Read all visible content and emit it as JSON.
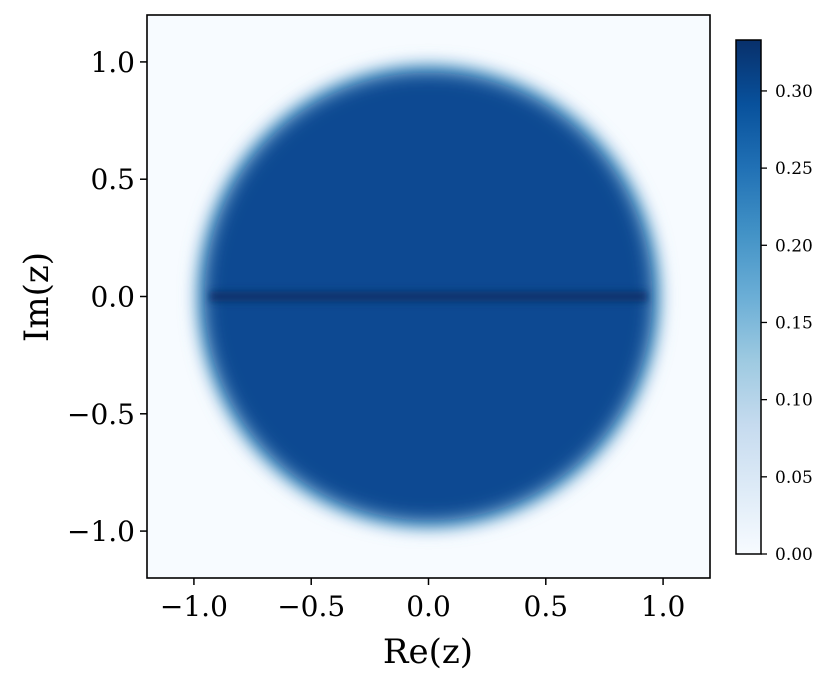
{
  "chart_data": {
    "type": "heatmap",
    "title": "",
    "xlabel": "Re(z)",
    "ylabel": "Im(z)",
    "xlim": [
      -1.2,
      1.2
    ],
    "ylim": [
      -1.2,
      1.2
    ],
    "xticks": [
      -1.0,
      -0.5,
      0.0,
      0.5,
      1.0
    ],
    "xtick_labels": [
      "−1.0",
      "−0.5",
      "0.0",
      "0.5",
      "1.0"
    ],
    "yticks": [
      1.0,
      0.5,
      0.0,
      -0.5,
      -1.0
    ],
    "ytick_labels": [
      "1.0",
      "0.5",
      "0.0",
      "−0.5",
      "−1.0"
    ],
    "colorbar": {
      "min": 0.0,
      "max": 0.333,
      "colormap": "Blues",
      "ticks": [
        0.0,
        0.05,
        0.1,
        0.15,
        0.2,
        0.25,
        0.3
      ],
      "tick_labels": [
        "0.00",
        "0.05",
        "0.10",
        "0.15",
        "0.20",
        "0.25",
        "0.30"
      ]
    },
    "density": {
      "description_values": {
        "disk_radius": 1.0,
        "interior_density": 0.3,
        "real_axis_density": 0.333,
        "outside_density": 0.0
      }
    },
    "grid": false,
    "colors": {
      "cmap_low": "#f7fbff",
      "cmap_high": "#08306b"
    }
  }
}
